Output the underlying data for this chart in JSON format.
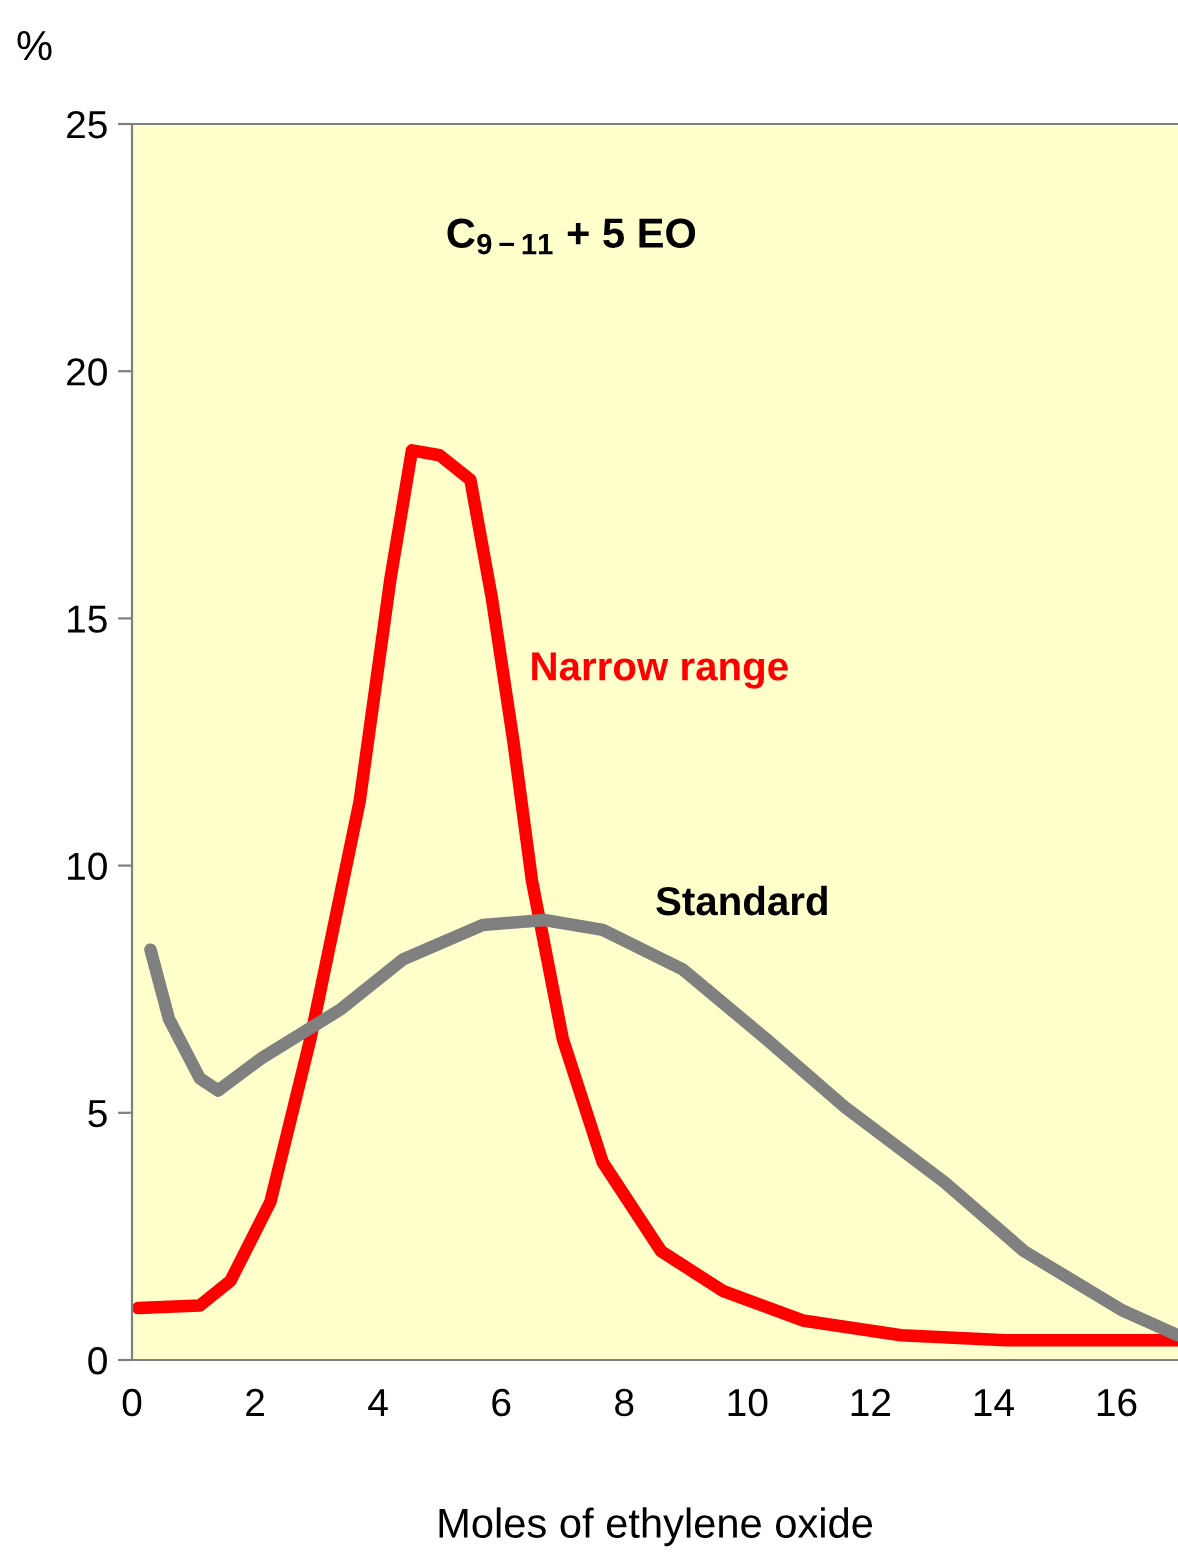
{
  "chart_data": {
    "type": "line",
    "title": "C$_{9−11}$ + 5 EO",
    "xlabel": "Moles of ethylene oxide",
    "ylabel": "%",
    "xlim": [
      0,
      17
    ],
    "ylim": [
      0,
      25
    ],
    "xticks": [
      0,
      2,
      4,
      6,
      8,
      10,
      12,
      14,
      16
    ],
    "yticks": [
      0,
      5,
      10,
      15,
      20,
      25
    ],
    "grid": false,
    "legend": false,
    "marker": "none",
    "line_style": "solid",
    "series": [
      {
        "name": "Narrow range",
        "color": "#ff0000",
        "x": [
          0.1,
          1.1,
          1.6,
          2.25,
          2.9,
          3.7,
          4.2,
          4.55,
          5.0,
          5.5,
          5.85,
          6.2,
          6.5,
          7.0,
          7.65,
          8.6,
          9.6,
          10.9,
          12.5,
          14.2,
          17.0
        ],
        "values": [
          1.05,
          1.1,
          1.6,
          3.2,
          6.5,
          11.3,
          15.8,
          18.4,
          18.3,
          17.8,
          15.4,
          12.5,
          9.7,
          6.5,
          4.0,
          2.2,
          1.4,
          0.8,
          0.5,
          0.4,
          0.4
        ]
      },
      {
        "name": "Standard",
        "color": "#808080",
        "x": [
          0.3,
          0.6,
          1.1,
          1.4,
          2.1,
          3.4,
          4.4,
          5.7,
          6.7,
          7.65,
          8.95,
          10.3,
          11.6,
          13.2,
          14.5,
          16.1,
          17.0
        ],
        "values": [
          8.3,
          6.9,
          5.7,
          5.45,
          6.1,
          7.1,
          8.1,
          8.8,
          8.9,
          8.7,
          7.9,
          6.5,
          5.1,
          3.6,
          2.2,
          1.0,
          0.5
        ]
      }
    ]
  }
}
